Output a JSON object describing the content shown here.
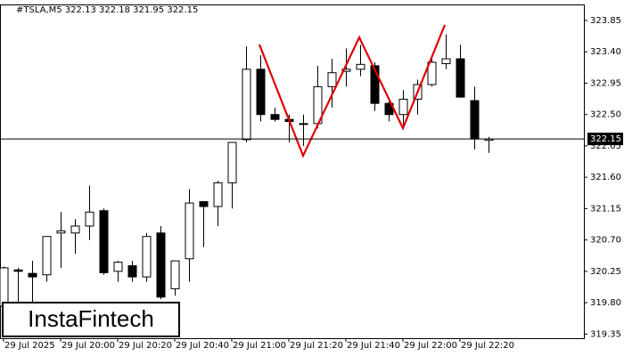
{
  "chart_data": {
    "type": "candlestick",
    "title": "#TSLA,M5  322.13 322.18 321.95 322.15",
    "logo": "InstaFintech",
    "categories": [
      "29 Jul 2025",
      null,
      null,
      null,
      "29 Jul 20:00",
      null,
      null,
      null,
      "29 Jul 20:20",
      null,
      null,
      null,
      "29 Jul 20:40",
      null,
      null,
      null,
      "29 Jul 21:00",
      null,
      null,
      null,
      "29 Jul 21:20",
      null,
      null,
      null,
      "29 Jul 21:40",
      null,
      null,
      null,
      "29 Jul 22:00",
      null,
      null,
      null,
      "29 Jul 22:20",
      null,
      null
    ],
    "open": [
      319.75,
      320.27,
      320.22,
      320.2,
      320.8,
      320.8,
      320.9,
      321.12,
      320.25,
      320.33,
      320.17,
      320.8,
      320.0,
      320.43,
      321.25,
      321.18,
      321.52,
      322.14,
      323.15,
      322.5,
      322.43,
      322.37,
      322.37,
      322.9,
      323.12,
      323.15,
      323.2,
      322.66,
      322.5,
      322.72,
      322.93,
      323.23,
      323.3,
      322.7,
      322.13
    ],
    "high": [
      320.32,
      320.3,
      320.4,
      320.75,
      321.1,
      321.0,
      321.48,
      321.15,
      320.4,
      320.4,
      320.8,
      320.9,
      320.4,
      321.43,
      321.25,
      321.55,
      322.1,
      323.48,
      323.35,
      322.6,
      322.5,
      322.5,
      323.2,
      323.3,
      323.45,
      323.5,
      323.25,
      322.7,
      322.85,
      323.0,
      323.3,
      323.65,
      323.5,
      322.9,
      322.18
    ],
    "low": [
      319.4,
      319.7,
      319.8,
      320.1,
      320.3,
      320.5,
      320.7,
      320.2,
      320.1,
      320.1,
      320.1,
      319.85,
      319.9,
      320.1,
      320.6,
      320.9,
      321.15,
      322.1,
      322.4,
      322.4,
      322.1,
      322.05,
      322.3,
      322.6,
      322.9,
      323.05,
      322.55,
      322.4,
      322.3,
      322.5,
      322.9,
      323.15,
      322.75,
      322.0,
      321.95
    ],
    "close": [
      320.3,
      320.25,
      320.17,
      320.75,
      320.83,
      320.9,
      321.1,
      320.23,
      320.38,
      320.17,
      320.75,
      319.88,
      320.4,
      321.23,
      321.18,
      321.52,
      322.1,
      323.15,
      322.5,
      322.43,
      322.4,
      322.37,
      322.9,
      323.1,
      323.15,
      323.22,
      322.66,
      322.5,
      322.72,
      322.93,
      323.25,
      323.3,
      322.75,
      322.15,
      322.15
    ],
    "up_color": "#ffffff",
    "down_color": "#000000",
    "price_line": 322.15,
    "ylim": [
      319.29,
      324.08
    ],
    "yticks": [
      319.35,
      {
        "value": 319.8,
        "label": "319.80"
      },
      320.25,
      {
        "value": 320.7,
        "label": "320.70"
      },
      321.15,
      {
        "value": 321.6,
        "label": "321.60"
      },
      322.05,
      {
        "value": 322.5,
        "label": "322.50"
      },
      322.95,
      {
        "value": 323.4,
        "label": "323.40"
      },
      323.85
    ],
    "grid": false
  }
}
